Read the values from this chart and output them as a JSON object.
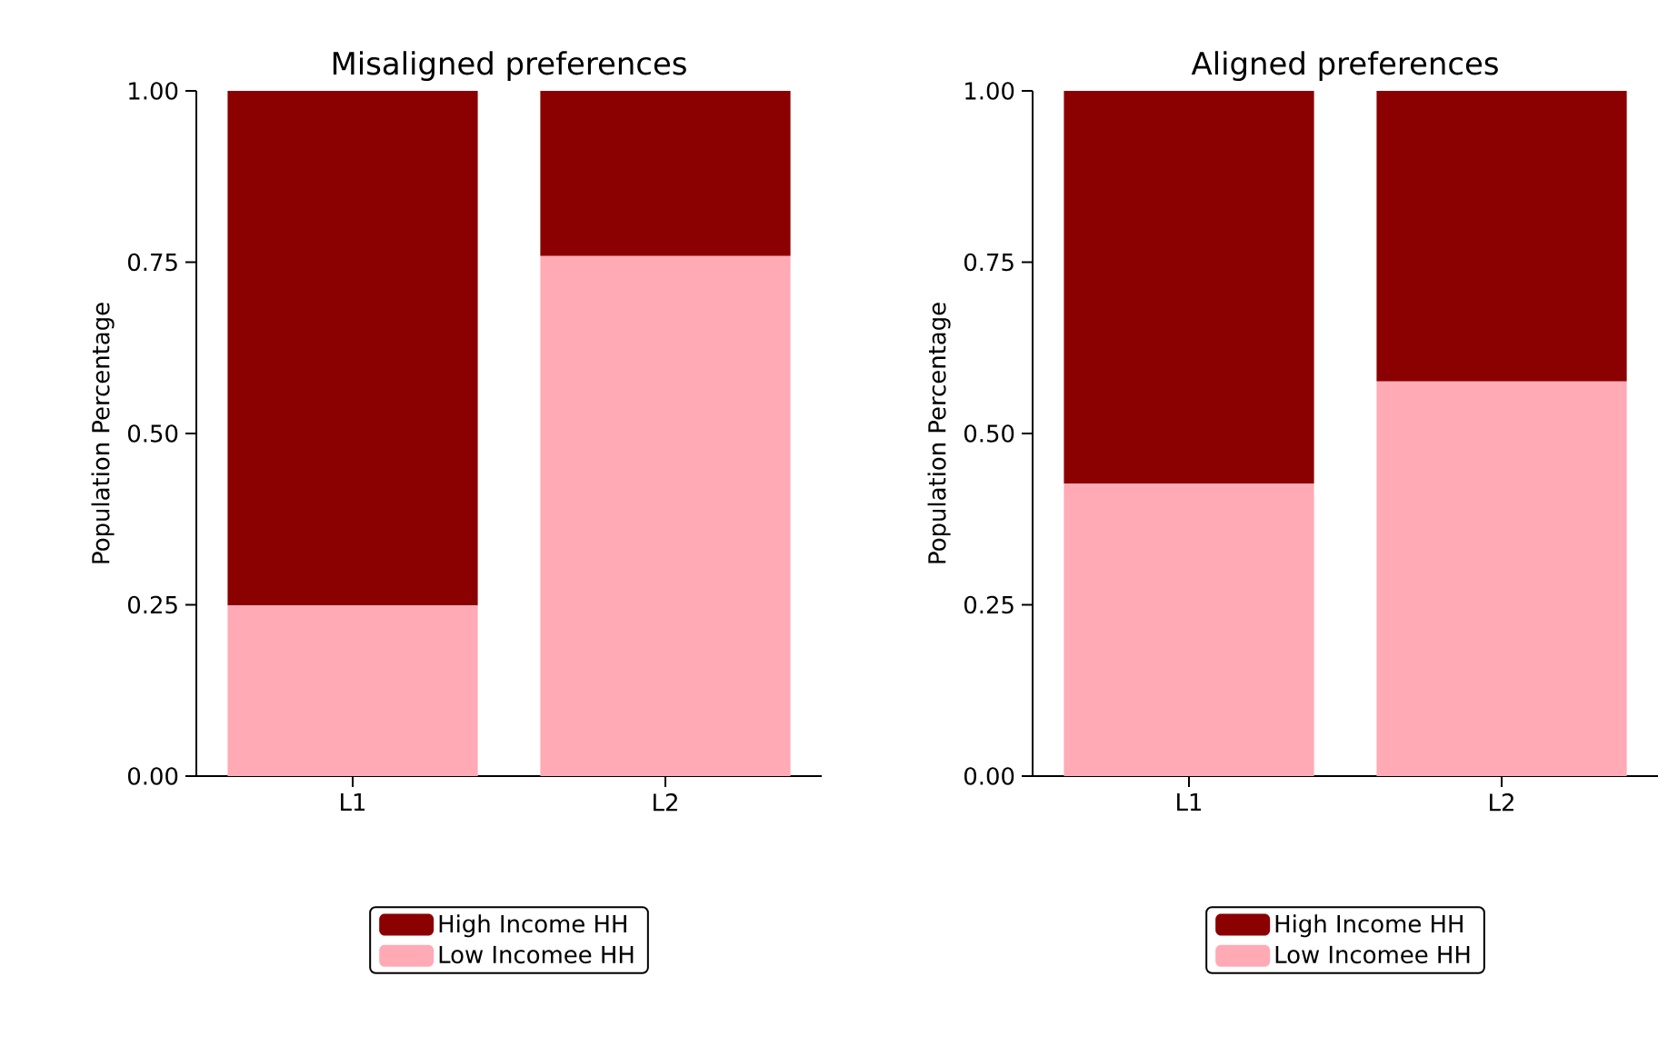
{
  "chart_data": [
    {
      "type": "bar",
      "title": "Misaligned preferences",
      "ylabel": "Population Percentage",
      "categories": [
        "L1",
        "L2"
      ],
      "stacked": true,
      "series": [
        {
          "name": "Low Incomee HH",
          "color": "#ffaab5",
          "values": [
            0.249,
            0.759
          ]
        },
        {
          "name": "High Income HH",
          "color": "#8b0000",
          "values": [
            0.751,
            0.241
          ]
        }
      ],
      "ylim": [
        0,
        1
      ],
      "yticks": [
        {
          "value": 0,
          "label": "0.00"
        },
        {
          "value": 0.25,
          "label": "0.25"
        },
        {
          "value": 0.5,
          "label": "0.50"
        },
        {
          "value": 0.75,
          "label": "0.75"
        },
        {
          "value": 1,
          "label": "1.00"
        }
      ],
      "legend": "bottom"
    },
    {
      "type": "bar",
      "title": "Aligned preferences",
      "ylabel": "Population Percentage",
      "categories": [
        "L1",
        "L2"
      ],
      "stacked": true,
      "series": [
        {
          "name": "Low Incomee HH",
          "color": "#ffaab5",
          "values": [
            0.427,
            0.576
          ]
        },
        {
          "name": "High Income HH",
          "color": "#8b0000",
          "values": [
            0.573,
            0.424
          ]
        }
      ],
      "ylim": [
        0,
        1
      ],
      "yticks": [
        {
          "value": 0,
          "label": "0.00"
        },
        {
          "value": 0.25,
          "label": "0.25"
        },
        {
          "value": 0.5,
          "label": "0.50"
        },
        {
          "value": 0.75,
          "label": "0.75"
        },
        {
          "value": 1,
          "label": "1.00"
        }
      ],
      "legend": "bottom"
    }
  ]
}
